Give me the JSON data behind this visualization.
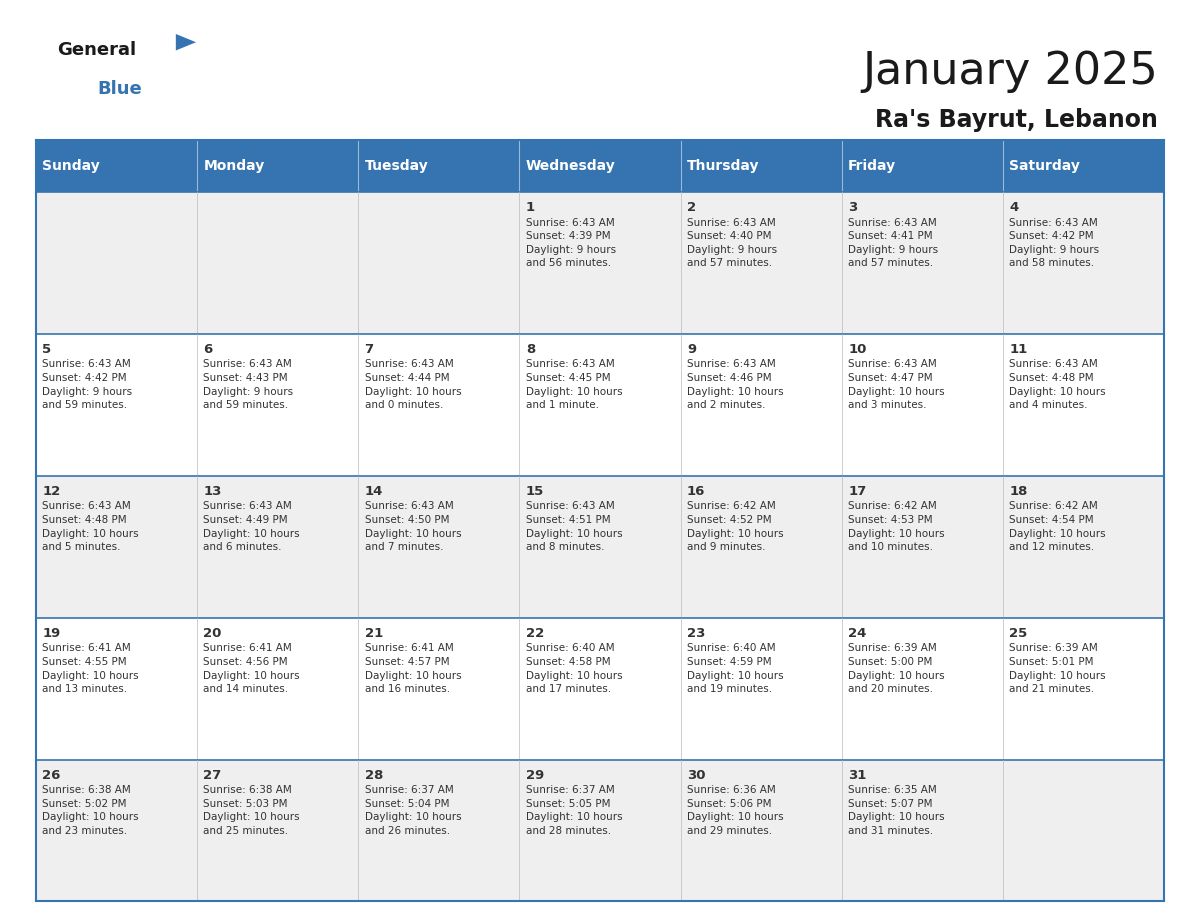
{
  "title": "January 2025",
  "subtitle": "Ra's Bayrut, Lebanon",
  "header_bg_color": "#3574B0",
  "header_text_color": "#FFFFFF",
  "cell_bg_odd": "#EFEFEF",
  "cell_bg_even": "#FFFFFF",
  "text_color": "#333333",
  "border_color": "#3574B0",
  "days_of_week": [
    "Sunday",
    "Monday",
    "Tuesday",
    "Wednesday",
    "Thursday",
    "Friday",
    "Saturday"
  ],
  "logo_general_color": "#1a1a1a",
  "logo_blue_color": "#3574B0",
  "logo_triangle_color": "#3574B0",
  "title_color": "#1a1a1a",
  "subtitle_color": "#1a1a1a",
  "calendar": [
    [
      {
        "day": "",
        "info": ""
      },
      {
        "day": "",
        "info": ""
      },
      {
        "day": "",
        "info": ""
      },
      {
        "day": "1",
        "info": "Sunrise: 6:43 AM\nSunset: 4:39 PM\nDaylight: 9 hours\nand 56 minutes."
      },
      {
        "day": "2",
        "info": "Sunrise: 6:43 AM\nSunset: 4:40 PM\nDaylight: 9 hours\nand 57 minutes."
      },
      {
        "day": "3",
        "info": "Sunrise: 6:43 AM\nSunset: 4:41 PM\nDaylight: 9 hours\nand 57 minutes."
      },
      {
        "day": "4",
        "info": "Sunrise: 6:43 AM\nSunset: 4:42 PM\nDaylight: 9 hours\nand 58 minutes."
      }
    ],
    [
      {
        "day": "5",
        "info": "Sunrise: 6:43 AM\nSunset: 4:42 PM\nDaylight: 9 hours\nand 59 minutes."
      },
      {
        "day": "6",
        "info": "Sunrise: 6:43 AM\nSunset: 4:43 PM\nDaylight: 9 hours\nand 59 minutes."
      },
      {
        "day": "7",
        "info": "Sunrise: 6:43 AM\nSunset: 4:44 PM\nDaylight: 10 hours\nand 0 minutes."
      },
      {
        "day": "8",
        "info": "Sunrise: 6:43 AM\nSunset: 4:45 PM\nDaylight: 10 hours\nand 1 minute."
      },
      {
        "day": "9",
        "info": "Sunrise: 6:43 AM\nSunset: 4:46 PM\nDaylight: 10 hours\nand 2 minutes."
      },
      {
        "day": "10",
        "info": "Sunrise: 6:43 AM\nSunset: 4:47 PM\nDaylight: 10 hours\nand 3 minutes."
      },
      {
        "day": "11",
        "info": "Sunrise: 6:43 AM\nSunset: 4:48 PM\nDaylight: 10 hours\nand 4 minutes."
      }
    ],
    [
      {
        "day": "12",
        "info": "Sunrise: 6:43 AM\nSunset: 4:48 PM\nDaylight: 10 hours\nand 5 minutes."
      },
      {
        "day": "13",
        "info": "Sunrise: 6:43 AM\nSunset: 4:49 PM\nDaylight: 10 hours\nand 6 minutes."
      },
      {
        "day": "14",
        "info": "Sunrise: 6:43 AM\nSunset: 4:50 PM\nDaylight: 10 hours\nand 7 minutes."
      },
      {
        "day": "15",
        "info": "Sunrise: 6:43 AM\nSunset: 4:51 PM\nDaylight: 10 hours\nand 8 minutes."
      },
      {
        "day": "16",
        "info": "Sunrise: 6:42 AM\nSunset: 4:52 PM\nDaylight: 10 hours\nand 9 minutes."
      },
      {
        "day": "17",
        "info": "Sunrise: 6:42 AM\nSunset: 4:53 PM\nDaylight: 10 hours\nand 10 minutes."
      },
      {
        "day": "18",
        "info": "Sunrise: 6:42 AM\nSunset: 4:54 PM\nDaylight: 10 hours\nand 12 minutes."
      }
    ],
    [
      {
        "day": "19",
        "info": "Sunrise: 6:41 AM\nSunset: 4:55 PM\nDaylight: 10 hours\nand 13 minutes."
      },
      {
        "day": "20",
        "info": "Sunrise: 6:41 AM\nSunset: 4:56 PM\nDaylight: 10 hours\nand 14 minutes."
      },
      {
        "day": "21",
        "info": "Sunrise: 6:41 AM\nSunset: 4:57 PM\nDaylight: 10 hours\nand 16 minutes."
      },
      {
        "day": "22",
        "info": "Sunrise: 6:40 AM\nSunset: 4:58 PM\nDaylight: 10 hours\nand 17 minutes."
      },
      {
        "day": "23",
        "info": "Sunrise: 6:40 AM\nSunset: 4:59 PM\nDaylight: 10 hours\nand 19 minutes."
      },
      {
        "day": "24",
        "info": "Sunrise: 6:39 AM\nSunset: 5:00 PM\nDaylight: 10 hours\nand 20 minutes."
      },
      {
        "day": "25",
        "info": "Sunrise: 6:39 AM\nSunset: 5:01 PM\nDaylight: 10 hours\nand 21 minutes."
      }
    ],
    [
      {
        "day": "26",
        "info": "Sunrise: 6:38 AM\nSunset: 5:02 PM\nDaylight: 10 hours\nand 23 minutes."
      },
      {
        "day": "27",
        "info": "Sunrise: 6:38 AM\nSunset: 5:03 PM\nDaylight: 10 hours\nand 25 minutes."
      },
      {
        "day": "28",
        "info": "Sunrise: 6:37 AM\nSunset: 5:04 PM\nDaylight: 10 hours\nand 26 minutes."
      },
      {
        "day": "29",
        "info": "Sunrise: 6:37 AM\nSunset: 5:05 PM\nDaylight: 10 hours\nand 28 minutes."
      },
      {
        "day": "30",
        "info": "Sunrise: 6:36 AM\nSunset: 5:06 PM\nDaylight: 10 hours\nand 29 minutes."
      },
      {
        "day": "31",
        "info": "Sunrise: 6:35 AM\nSunset: 5:07 PM\nDaylight: 10 hours\nand 31 minutes."
      },
      {
        "day": "",
        "info": ""
      }
    ]
  ]
}
